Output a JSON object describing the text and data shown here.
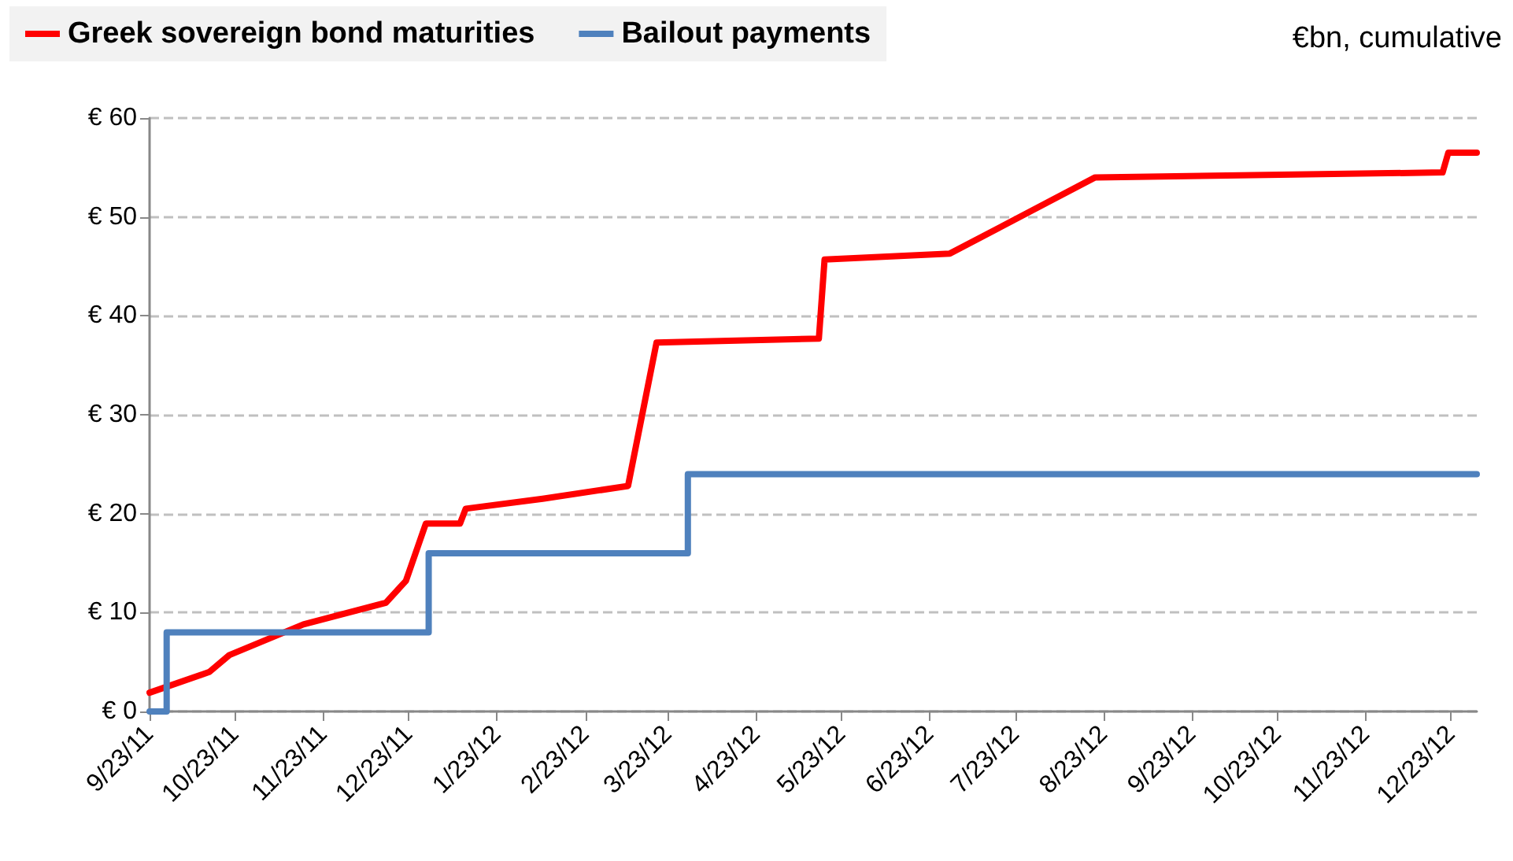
{
  "chart_data": {
    "type": "line",
    "subtitle": "€bn, cumulative",
    "series": [
      {
        "name": "Greek sovereign bond maturities",
        "color": "#ff0000",
        "x": [
          "2011-09-23",
          "2011-10-14",
          "2011-10-21",
          "2011-11-16",
          "2011-12-15",
          "2011-12-22",
          "2011-12-29",
          "2012-01-10",
          "2012-01-12",
          "2012-02-08",
          "2012-03-09",
          "2012-03-19",
          "2012-05-15",
          "2012-05-17",
          "2012-06-30",
          "2012-08-20",
          "2012-12-20",
          "2012-12-22",
          "2013-01-01"
        ],
        "values": [
          1.9,
          4.0,
          5.7,
          8.8,
          11.0,
          13.2,
          19.0,
          19.0,
          20.5,
          21.5,
          22.8,
          37.3,
          37.7,
          45.7,
          46.3,
          54.0,
          54.5,
          56.5,
          56.5
        ]
      },
      {
        "name": "Bailout payments",
        "color": "#4f81bd",
        "type": "step",
        "x": [
          "2011-09-23",
          "2011-09-29",
          "2011-12-30",
          "2012-03-30",
          "2013-01-01"
        ],
        "values": [
          0,
          8,
          16,
          24,
          24
        ]
      }
    ],
    "xlim": [
      "2011-09-23",
      "2013-01-01"
    ],
    "xticks": [
      {
        "value": "2011-09-23",
        "label": "9/23/11"
      },
      {
        "value": "2011-10-23",
        "label": "10/23/11"
      },
      {
        "value": "2011-11-23",
        "label": "11/23/11"
      },
      {
        "value": "2011-12-23",
        "label": "12/23/11"
      },
      {
        "value": "2012-01-23",
        "label": "1/23/12"
      },
      {
        "value": "2012-02-23",
        "label": "2/23/12"
      },
      {
        "value": "2012-03-23",
        "label": "3/23/12"
      },
      {
        "value": "2012-04-23",
        "label": "4/23/12"
      },
      {
        "value": "2012-05-23",
        "label": "5/23/12"
      },
      {
        "value": "2012-06-23",
        "label": "6/23/12"
      },
      {
        "value": "2012-07-23",
        "label": "7/23/12"
      },
      {
        "value": "2012-08-23",
        "label": "8/23/12"
      },
      {
        "value": "2012-09-23",
        "label": "9/23/12"
      },
      {
        "value": "2012-10-23",
        "label": "10/23/12"
      },
      {
        "value": "2012-11-23",
        "label": "11/23/12"
      },
      {
        "value": "2012-12-23",
        "label": "12/23/12"
      }
    ],
    "ylim": [
      0,
      60
    ],
    "yticks": [
      {
        "value": 0,
        "label": "€ 0"
      },
      {
        "value": 10,
        "label": "€ 10"
      },
      {
        "value": 20,
        "label": "€ 20"
      },
      {
        "value": 30,
        "label": "€ 30"
      },
      {
        "value": 40,
        "label": "€ 40"
      },
      {
        "value": 50,
        "label": "€ 50"
      },
      {
        "value": 60,
        "label": "€ 60"
      }
    ],
    "grid": "y",
    "legend": "top left",
    "marker": "none",
    "line_style": "solid"
  }
}
